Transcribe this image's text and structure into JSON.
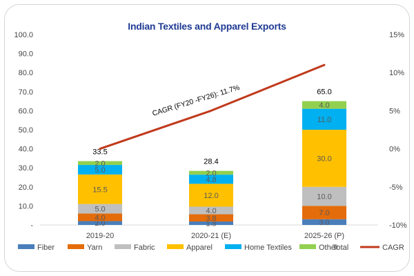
{
  "chart_data": {
    "type": "stacked-bar-with-line",
    "title": "Indian Textiles and Apparel Exports",
    "categories": [
      "2019-20",
      "2020-21 (E)",
      "2025-26 (P)"
    ],
    "series": [
      {
        "name": "Fiber",
        "color": "#4a7ebb",
        "values": [
          2.0,
          1.8,
          3.0
        ]
      },
      {
        "name": "Yarn",
        "color": "#e46c0a",
        "values": [
          4.0,
          3.8,
          7.0
        ]
      },
      {
        "name": "Fabric",
        "color": "#bfbfbf",
        "values": [
          5.0,
          4.0,
          10.0
        ]
      },
      {
        "name": "Apparel",
        "color": "#ffc000",
        "values": [
          15.5,
          12.0,
          30.0
        ]
      },
      {
        "name": "Home Textiles",
        "color": "#00b0f0",
        "values": [
          5.0,
          4.8,
          11.0
        ]
      },
      {
        "name": "Other",
        "color": "#92d050",
        "values": [
          2.0,
          2.0,
          4.0
        ]
      }
    ],
    "totals": {
      "name": "Total",
      "values": [
        "33.5",
        "28.4",
        "65.0"
      ]
    },
    "segment_labels": [
      [
        "2.0",
        "4.0",
        "5.0",
        "15.5",
        "5.0",
        "2.0"
      ],
      [
        "1.8",
        "3.8",
        "4.0",
        "12.0",
        "4.8",
        "2.0"
      ],
      [
        "3.0",
        "7.0",
        "10.0",
        "30.0",
        "11.0",
        "4.0"
      ]
    ],
    "cagr_line": {
      "name": "CAGR",
      "color": "#c0391b",
      "values": [
        0,
        5,
        11
      ]
    },
    "cagr_annotation": "CAGR (FY20 -FY26): 11.7%",
    "y_left": {
      "min": 0,
      "max": 100,
      "step": 10,
      "tick_labels": [
        "-",
        "10.0",
        "20.0",
        "30.0",
        "40.0",
        "50.0",
        "60.0",
        "70.0",
        "80.0",
        "90.0",
        "100.0"
      ]
    },
    "y_right": {
      "min": -10,
      "max": 15,
      "step": 5,
      "tick_labels": [
        "-10%",
        "-5%",
        "0%",
        "5%",
        "10%",
        "15%"
      ]
    },
    "legend": {
      "position": "bottom",
      "items": [
        "Fiber",
        "Yarn",
        "Fabric",
        "Apparel",
        "Home Textiles",
        "Other",
        "Total",
        "CAGR"
      ]
    }
  }
}
